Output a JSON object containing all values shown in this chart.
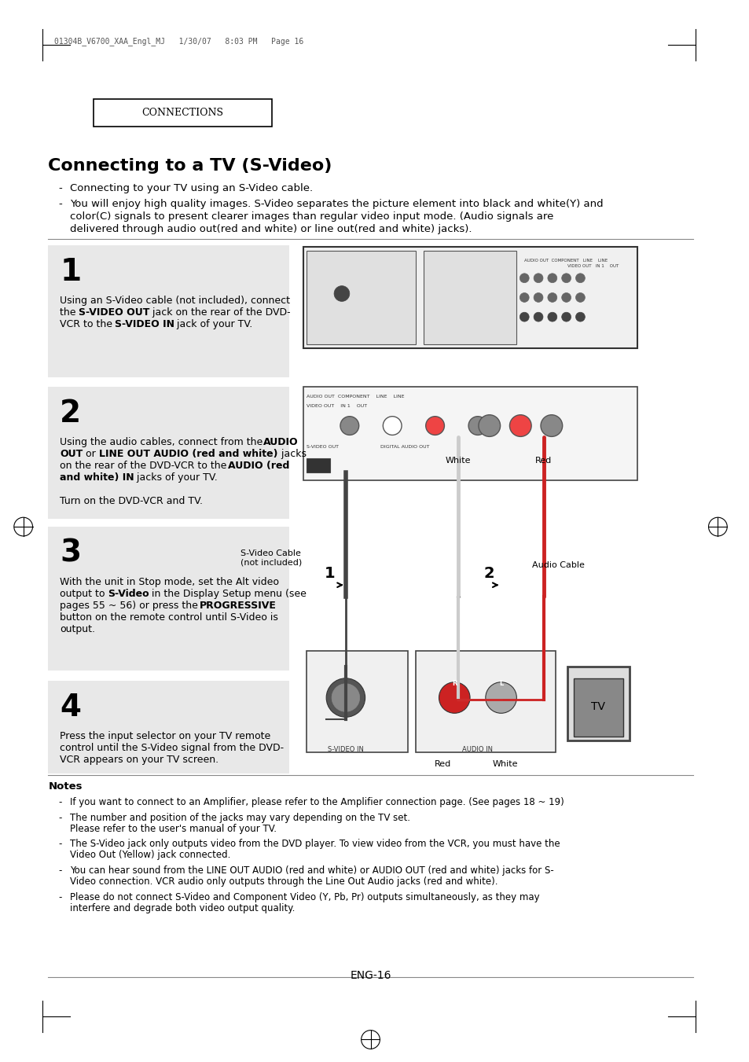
{
  "page_header": "01304B_V6700_XAA_Engl_MJ   1/30/07   8:03 PM   Page 16",
  "section_title": "CONNECTIONS",
  "main_title": "Connecting to a TV (S-Video)",
  "bullets": [
    "Connecting to your TV using an S-Video cable.",
    "You will enjoy high quality images. S-Video separates the picture element into black and white(Y) and\ncolor(C) signals to present clearer images than regular video input mode. (Audio signals are\ndelivered through audio out(red and white) or line out(red and white) jacks)."
  ],
  "steps": [
    {
      "num": "1",
      "text_parts": [
        {
          "text": "Using an S-Video cable (not included), connect\nthe ",
          "bold": false
        },
        {
          "text": "S-VIDEO OUT",
          "bold": true
        },
        {
          "text": " jack on the rear of the DVD-\nVCR to the ",
          "bold": false
        },
        {
          "text": "S-VIDEO IN",
          "bold": true
        },
        {
          "text": " jack of your TV.",
          "bold": false
        }
      ]
    },
    {
      "num": "2",
      "text_parts": [
        {
          "text": "Using the audio cables, connect from the ",
          "bold": false
        },
        {
          "text": "AUDIO\nOUT",
          "bold": true
        },
        {
          "text": " or ",
          "bold": false
        },
        {
          "text": "LINE OUT AUDIO (red and white)",
          "bold": true
        },
        {
          "text": "  jacks\non the rear of the DVD-VCR to the ",
          "bold": false
        },
        {
          "text": "AUDIO (red\nand white) IN",
          "bold": true
        },
        {
          "text": " jacks of your TV.\n\nTurn on the DVD-VCR and TV.",
          "bold": false
        }
      ]
    },
    {
      "num": "3",
      "text_parts": [
        {
          "text": "With the unit in Stop mode, set the Alt video\noutput to ",
          "bold": false
        },
        {
          "text": "S-Video",
          "bold": true
        },
        {
          "text": " in the Display Setup menu (see\npages 55 ~ 56) or press the ",
          "bold": false
        },
        {
          "text": "PROGRESSIVE",
          "bold": true
        },
        {
          "text": "\nbutton on the remote control until S-Video is\noutput.",
          "bold": false
        }
      ]
    },
    {
      "num": "4",
      "text_parts": [
        {
          "text": "Press the input selector on your TV remote\ncontrol until the S-Video signal from the DVD-\nVCR appears on your TV screen.",
          "bold": false
        }
      ]
    }
  ],
  "notes_title": "Notes",
  "notes": [
    "If you want to connect to an Amplifier, please refer to the Amplifier connection page. (See pages 18 ~ 19)",
    "The number and position of the jacks may vary depending on the TV set.\nPlease refer to the user's manual of your TV.",
    "The S-Video jack only outputs video from the DVD player. To view video from the VCR, you must have the\nVideo Out (Yellow) jack connected.",
    "You can hear sound from the LINE OUT AUDIO (red and white) or AUDIO OUT (red and white) jacks for S-\nVideo connection. VCR audio only outputs through the Line Out Audio jacks (red and white).",
    "Please do not connect S-Video and Component Video (Y, Pb, Pr) outputs simultaneously, as they may\ninterfere and degrade both video output quality."
  ],
  "page_num": "ENG-16",
  "bg_color": "#ffffff",
  "step_bg_color": "#e8e8e8",
  "text_color": "#000000",
  "border_color": "#000000"
}
